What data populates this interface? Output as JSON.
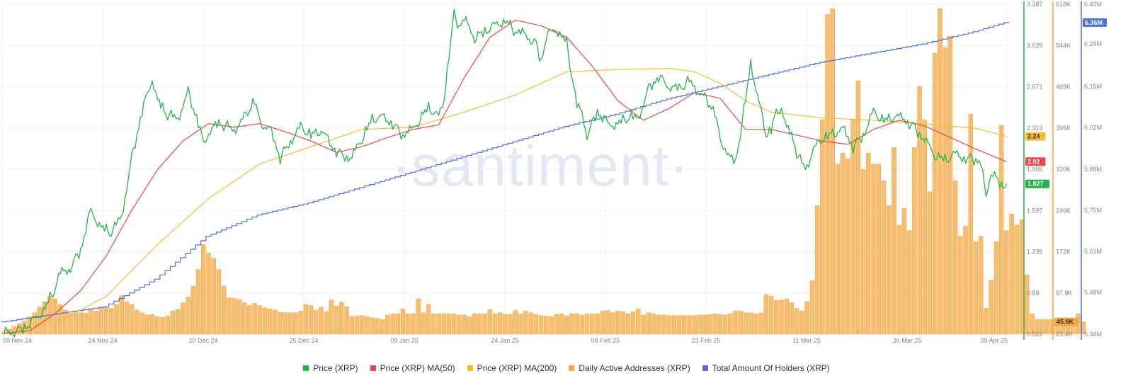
{
  "chart_data": {
    "type": "line",
    "watermark": "·santiment·",
    "x_ticks": [
      "09 Nov 24",
      "24 Nov 24",
      "10 Dec 24",
      "25 Dec 24",
      "09 Jan 25",
      "24 Jan 25",
      "08 Feb 25",
      "23 Feb 25",
      "11 Mar 25",
      "26 Mar 25",
      "09 Apr 25"
    ],
    "axes": {
      "price": {
        "ticks": [
          "3.387",
          "3.029",
          "2.671",
          "2.313",
          "1.955",
          "1.597",
          "1.239",
          "0.88",
          "0.522"
        ],
        "range": [
          0.522,
          3.387
        ],
        "color": "#26b24a"
      },
      "addresses": {
        "ticks": [
          "618K",
          "544K",
          "469K",
          "395K",
          "320K",
          "246K",
          "172K",
          "97.8K",
          "23.4K"
        ],
        "range": [
          23400,
          618000
        ],
        "color": "#f4a742"
      },
      "holders": {
        "ticks": [
          "6.42M",
          "6.36M",
          "6.29M",
          "6.15M",
          "6.02M",
          "5.88M",
          "5.75M",
          "5.61M",
          "5.48M",
          "5.34M"
        ],
        "range": [
          5.34,
          6.42
        ],
        "color": "#4f6ddf"
      }
    },
    "last_values": {
      "price": "1.827",
      "ma50": "2.02",
      "ma200": "2.24",
      "addresses": "45.6K",
      "holders": "6.36M"
    },
    "series": [
      {
        "name": "Price (XRP)",
        "color": "#26b24a",
        "axis": "price",
        "anchors": [
          [
            0,
            0.53
          ],
          [
            3,
            0.56
          ],
          [
            5,
            0.6
          ],
          [
            8,
            0.75
          ],
          [
            10,
            0.92
          ],
          [
            11,
            1.05
          ],
          [
            13,
            1.1
          ],
          [
            15,
            1.25
          ],
          [
            17,
            1.6
          ],
          [
            19,
            1.45
          ],
          [
            21,
            1.4
          ],
          [
            23,
            1.55
          ],
          [
            25,
            2.05
          ],
          [
            27,
            2.45
          ],
          [
            29,
            2.75
          ],
          [
            30,
            2.55
          ],
          [
            32,
            2.42
          ],
          [
            34,
            2.4
          ],
          [
            36,
            2.62
          ],
          [
            38,
            2.35
          ],
          [
            39,
            2.18
          ],
          [
            40,
            2.28
          ],
          [
            42,
            2.35
          ],
          [
            45,
            2.3
          ],
          [
            47,
            2.4
          ],
          [
            49,
            2.55
          ],
          [
            50,
            2.37
          ],
          [
            52,
            2.3
          ],
          [
            54,
            2.05
          ],
          [
            56,
            2.2
          ],
          [
            58,
            2.32
          ],
          [
            60,
            2.25
          ],
          [
            62,
            2.3
          ],
          [
            64,
            2.15
          ],
          [
            66,
            2.08
          ],
          [
            68,
            2.05
          ],
          [
            70,
            2.22
          ],
          [
            72,
            2.4
          ],
          [
            74,
            2.4
          ],
          [
            76,
            2.35
          ],
          [
            78,
            2.25
          ],
          [
            80,
            2.3
          ],
          [
            81,
            2.37
          ],
          [
            83,
            2.5
          ],
          [
            85,
            2.4
          ],
          [
            86,
            2.55
          ],
          [
            87,
            2.95
          ],
          [
            88,
            3.3
          ],
          [
            89,
            3.2
          ],
          [
            90,
            3.25
          ],
          [
            92,
            3.1
          ],
          [
            94,
            3.15
          ],
          [
            96,
            3.2
          ],
          [
            98,
            3.25
          ],
          [
            100,
            3.15
          ],
          [
            102,
            3.12
          ],
          [
            104,
            3.05
          ],
          [
            105,
            2.88
          ],
          [
            106,
            3.1
          ],
          [
            108,
            3.18
          ],
          [
            110,
            3.05
          ],
          [
            112,
            2.5
          ],
          [
            113,
            2.45
          ],
          [
            114,
            2.25
          ],
          [
            116,
            2.45
          ],
          [
            118,
            2.35
          ],
          [
            120,
            2.35
          ],
          [
            122,
            2.4
          ],
          [
            124,
            2.4
          ],
          [
            126,
            2.65
          ],
          [
            128,
            2.75
          ],
          [
            130,
            2.68
          ],
          [
            132,
            2.65
          ],
          [
            134,
            2.72
          ],
          [
            135,
            2.67
          ],
          [
            137,
            2.57
          ],
          [
            139,
            2.45
          ],
          [
            140,
            2.2
          ],
          [
            141,
            2.15
          ],
          [
            142,
            2.05
          ],
          [
            143,
            2.0
          ],
          [
            144,
            2.28
          ],
          [
            145,
            2.55
          ],
          [
            146,
            2.9
          ],
          [
            147,
            2.65
          ],
          [
            148,
            2.45
          ],
          [
            149,
            2.25
          ],
          [
            150,
            2.3
          ],
          [
            151,
            2.45
          ],
          [
            152,
            2.5
          ],
          [
            153,
            2.3
          ],
          [
            154,
            2.25
          ],
          [
            155,
            2.1
          ],
          [
            156,
            2.0
          ],
          [
            157,
            1.98
          ],
          [
            158,
            2.1
          ],
          [
            160,
            2.22
          ],
          [
            162,
            2.27
          ],
          [
            164,
            2.3
          ],
          [
            166,
            2.15
          ],
          [
            168,
            2.25
          ],
          [
            170,
            2.45
          ],
          [
            172,
            2.38
          ],
          [
            174,
            2.41
          ],
          [
            176,
            2.39
          ],
          [
            178,
            2.32
          ],
          [
            180,
            2.2
          ],
          [
            182,
            2.08
          ],
          [
            184,
            2.04
          ],
          [
            186,
            2.08
          ],
          [
            188,
            2.05
          ],
          [
            190,
            2.04
          ],
          [
            191,
            2.0
          ],
          [
            192,
            1.7
          ],
          [
            193,
            1.95
          ],
          [
            194,
            1.88
          ],
          [
            195,
            1.8
          ],
          [
            196,
            1.83
          ]
        ]
      },
      {
        "name": "Price (XRP) MA(50)",
        "color": "#e8474b",
        "axis": "price",
        "anchors": [
          [
            0,
            0.53
          ],
          [
            5,
            0.55
          ],
          [
            10,
            0.7
          ],
          [
            15,
            0.9
          ],
          [
            20,
            1.2
          ],
          [
            25,
            1.6
          ],
          [
            30,
            1.95
          ],
          [
            35,
            2.2
          ],
          [
            40,
            2.35
          ],
          [
            45,
            2.32
          ],
          [
            50,
            2.35
          ],
          [
            55,
            2.28
          ],
          [
            60,
            2.2
          ],
          [
            65,
            2.1
          ],
          [
            70,
            2.15
          ],
          [
            75,
            2.23
          ],
          [
            80,
            2.3
          ],
          [
            85,
            2.34
          ],
          [
            90,
            2.75
          ],
          [
            95,
            3.1
          ],
          [
            100,
            3.25
          ],
          [
            105,
            3.2
          ],
          [
            110,
            3.1
          ],
          [
            115,
            2.85
          ],
          [
            120,
            2.55
          ],
          [
            125,
            2.38
          ],
          [
            130,
            2.48
          ],
          [
            135,
            2.62
          ],
          [
            140,
            2.57
          ],
          [
            145,
            2.3
          ],
          [
            150,
            2.3
          ],
          [
            155,
            2.25
          ],
          [
            160,
            2.2
          ],
          [
            165,
            2.17
          ],
          [
            170,
            2.3
          ],
          [
            175,
            2.38
          ],
          [
            180,
            2.33
          ],
          [
            185,
            2.23
          ],
          [
            190,
            2.13
          ],
          [
            196,
            2.02
          ]
        ]
      },
      {
        "name": "Price (XRP) MA(200)",
        "color": "#f5bd2f",
        "axis": "price",
        "anchors": [
          [
            0,
            0.55
          ],
          [
            10,
            0.62
          ],
          [
            20,
            0.85
          ],
          [
            30,
            1.3
          ],
          [
            40,
            1.7
          ],
          [
            50,
            2.0
          ],
          [
            60,
            2.15
          ],
          [
            70,
            2.3
          ],
          [
            80,
            2.32
          ],
          [
            90,
            2.45
          ],
          [
            100,
            2.6
          ],
          [
            110,
            2.8
          ],
          [
            120,
            2.82
          ],
          [
            130,
            2.83
          ],
          [
            135,
            2.8
          ],
          [
            140,
            2.7
          ],
          [
            145,
            2.55
          ],
          [
            150,
            2.45
          ],
          [
            160,
            2.4
          ],
          [
            170,
            2.38
          ],
          [
            180,
            2.35
          ],
          [
            190,
            2.31
          ],
          [
            196,
            2.24
          ]
        ]
      },
      {
        "name": "Daily Active Addresses (XRP)",
        "color": "#f4a742",
        "axis": "addresses",
        "type": "bar",
        "values": [
          27,
          32,
          37,
          42,
          47,
          55,
          62,
          72,
          82,
          92,
          87,
          77,
          67,
          61,
          62,
          62,
          61,
          69,
          65,
          72,
          72,
          70,
          77,
          93,
          82,
          77,
          67,
          62,
          58,
          59,
          55,
          54,
          56,
          65,
          68,
          80,
          90,
          110,
          140,
          185,
          170,
          160,
          140,
          110,
          89,
          88,
          86,
          80,
          75,
          79,
          75,
          71,
          69,
          67,
          63,
          62,
          62,
          62,
          65,
          77,
          75,
          67,
          72,
          64,
          85,
          74,
          81,
          73,
          55,
          56,
          57,
          55,
          53,
          52,
          50,
          58,
          60,
          60,
          69,
          60,
          60,
          87,
          62,
          77,
          60,
          60,
          60,
          60,
          60,
          58,
          58,
          55,
          60,
          60,
          60,
          68,
          60,
          62,
          59,
          59,
          66,
          60,
          65,
          62,
          59,
          57,
          56,
          55,
          59,
          60,
          56,
          60,
          60,
          58,
          60,
          60,
          60,
          65,
          66,
          62,
          65,
          64,
          60,
          64,
          69,
          58,
          62,
          60,
          58,
          58,
          57,
          57,
          57,
          57,
          57,
          57,
          58,
          58,
          59,
          60,
          59,
          58,
          60,
          65,
          65,
          62,
          62,
          60,
          62,
          95,
          92,
          84,
          85,
          87,
          80,
          70,
          65,
          82,
          120,
          255,
          410,
          600,
          610,
          330,
          350,
          340,
          410,
          480,
          320,
          350,
          330,
          330,
          300,
          255,
          360,
          220,
          250,
          210,
          360,
          470,
          410,
          280,
          530,
          610,
          540,
          560,
          300,
          200,
          218,
          420,
          190,
          200,
          70,
          120,
          190,
          400,
          210,
          240,
          220,
          230,
          130,
          60,
          50,
          50,
          50,
          50,
          50,
          50,
          50,
          50,
          60,
          45.6
        ]
      },
      {
        "name": "Total Amount Of Holders (XRP)",
        "color": "#4f6ddf",
        "axis": "holders",
        "anchors": [
          [
            0,
            5.38
          ],
          [
            20,
            5.43
          ],
          [
            30,
            5.52
          ],
          [
            40,
            5.66
          ],
          [
            50,
            5.73
          ],
          [
            60,
            5.77
          ],
          [
            70,
            5.82
          ],
          [
            80,
            5.87
          ],
          [
            90,
            5.92
          ],
          [
            100,
            5.97
          ],
          [
            110,
            6.02
          ],
          [
            120,
            6.06
          ],
          [
            130,
            6.11
          ],
          [
            140,
            6.15
          ],
          [
            150,
            6.19
          ],
          [
            160,
            6.23
          ],
          [
            170,
            6.26
          ],
          [
            180,
            6.29
          ],
          [
            190,
            6.33
          ],
          [
            196,
            6.36
          ]
        ]
      }
    ]
  }
}
